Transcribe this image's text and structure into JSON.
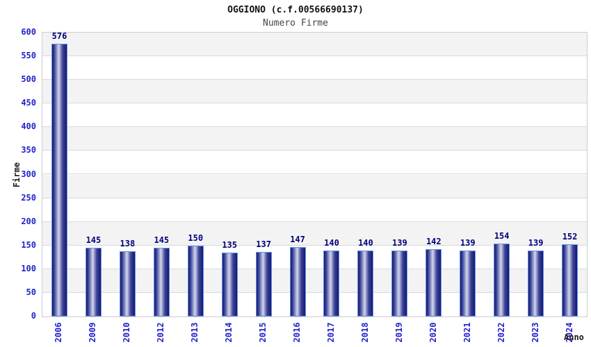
{
  "header": {
    "title": "OGGIONO (c.f.00566690137)",
    "subtitle": "Numero Firme"
  },
  "chart_data": {
    "type": "bar",
    "title": "OGGIONO (c.f.00566690137)",
    "subtitle": "Numero Firme",
    "xlabel": "Anno",
    "ylabel": "Firme",
    "categories": [
      "2006",
      "2009",
      "2010",
      "2012",
      "2013",
      "2014",
      "2015",
      "2016",
      "2017",
      "2018",
      "2019",
      "2020",
      "2021",
      "2022",
      "2023",
      "2024"
    ],
    "values": [
      576,
      145,
      138,
      145,
      150,
      135,
      137,
      147,
      140,
      140,
      139,
      142,
      139,
      154,
      139,
      152
    ],
    "ylim": [
      0,
      600
    ],
    "ytick_step": 50,
    "grid": true,
    "legend": false,
    "colors": {
      "tick_label": "#2222cc",
      "value_label": "#00007e",
      "bar_border": "#5d96e8",
      "bar_dark": "#17176e",
      "bar_mid": "#3d4398",
      "bar_light": "#d2d7ec",
      "band_gray": "#f3f3f3",
      "gridline": "#d9d9d9",
      "plot_border": "#cccccc",
      "title_color": "#111111",
      "subtitle_color": "#454545"
    }
  }
}
